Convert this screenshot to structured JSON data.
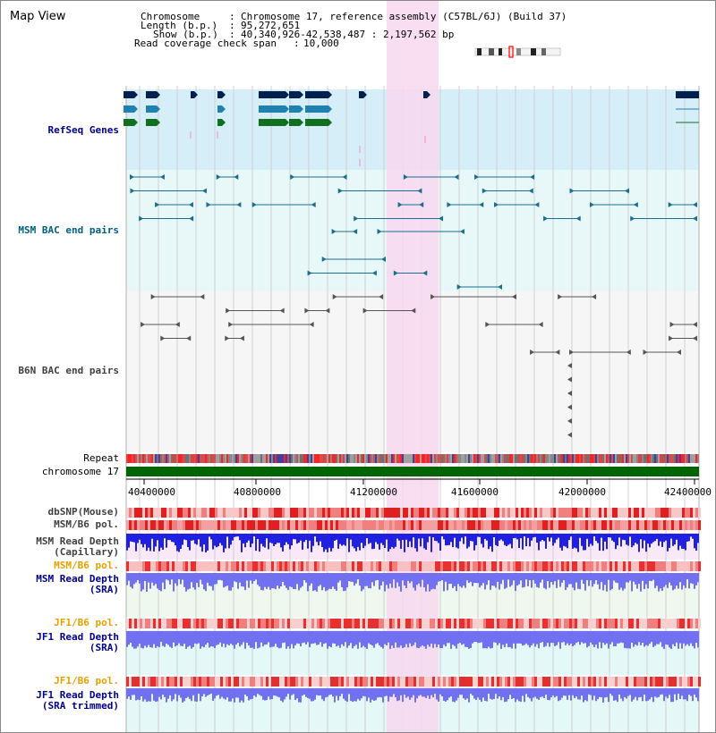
{
  "title": "Map View",
  "info": {
    "chromosome_label": "Chromosome",
    "chromosome_value": "Chromosome 17, reference assembly (C57BL/6J) (Build 37)",
    "length_label": "Length (b.p.)",
    "length_value": "95,272,651",
    "show_label": "Show (b.p.)",
    "show_value": "40,340,926-42,538,487 : 2,197,562 bp",
    "coverage_label": "Read coverage check span",
    "coverage_value": "10,000"
  },
  "tracks": {
    "refseq": "RefSeq Genes",
    "msm_bac": "MSM BAC end pairs",
    "b6n_bac": "B6N BAC end pairs",
    "repeat": "Repeat",
    "chromosome": "chromosome 17",
    "dbsnp": "dbSNP(Mouse)",
    "msm_b6_pol_1": "MSM/B6 pol.",
    "msm_depth_cap_1": "MSM Read Depth",
    "msm_depth_cap_2": "(Capillary)",
    "msm_b6_pol_2": "MSM/B6 pol.",
    "msm_depth_sra_1": "MSM Read Depth",
    "msm_depth_sra_2": "(SRA)",
    "jf1_b6_pol_1": "JF1/B6 pol.",
    "jf1_depth_sra_1": "JF1 Read Depth",
    "jf1_depth_sra_2": "(SRA)",
    "jf1_b6_pol_2": "JF1/B6 pol.",
    "jf1_depth_trim_1": "JF1 Read Depth",
    "jf1_depth_trim_2": "(SRA trimmed)"
  },
  "axis_ticks": [
    "40400000",
    "40800000",
    "41200000",
    "41600000",
    "42000000",
    "42400000"
  ],
  "colors": {
    "refseq_bg": "#d6eef8",
    "msm_bac_bg": "#e8f8f8",
    "b6n_bg": "#f6f6f6",
    "highlight": "#f8d8f0",
    "refseq_label": "#00008b",
    "msm_label": "#006080",
    "b6n_label": "#404040",
    "orange_label": "#e8a000",
    "blue_label": "#00008b",
    "chromosome_bar": "#006400",
    "depth_blue": "#2020e0",
    "depth_light": "#7070f0"
  }
}
